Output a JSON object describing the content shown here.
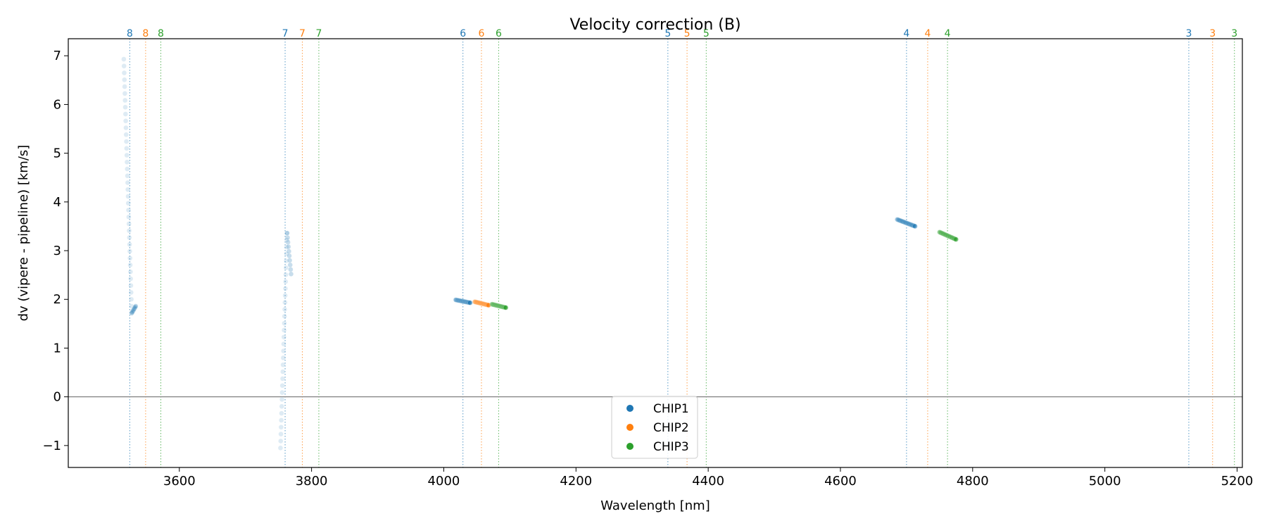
{
  "chart_data": {
    "type": "scatter",
    "title": "Velocity correction (B)",
    "xlabel": "Wavelength [nm]",
    "ylabel": "dv (vipere - pipeline) [km/s]",
    "xlim": [
      3432,
      5208
    ],
    "ylim": [
      -1.45,
      7.35
    ],
    "xticks": [
      3600,
      3800,
      4000,
      4200,
      4400,
      4600,
      4800,
      5000,
      5200
    ],
    "yticks": [
      -1,
      0,
      1,
      2,
      3,
      4,
      5,
      6,
      7
    ],
    "ytick_labels": [
      "−1",
      "0",
      "1",
      "2",
      "3",
      "4",
      "5",
      "6",
      "7"
    ],
    "hline": 0,
    "legend": {
      "position": "bottom-center",
      "entries": [
        {
          "label": "CHIP1",
          "color": "#1f77b4"
        },
        {
          "label": "CHIP2",
          "color": "#ff7f0e"
        },
        {
          "label": "CHIP3",
          "color": "#2ca02c"
        }
      ]
    },
    "order_lines": [
      {
        "order": "8",
        "chip": 1,
        "x": 3525
      },
      {
        "order": "8",
        "chip": 2,
        "x": 3549
      },
      {
        "order": "8",
        "chip": 3,
        "x": 3572
      },
      {
        "order": "7",
        "chip": 1,
        "x": 3760
      },
      {
        "order": "7",
        "chip": 2,
        "x": 3786
      },
      {
        "order": "7",
        "chip": 3,
        "x": 3811
      },
      {
        "order": "6",
        "chip": 1,
        "x": 4029
      },
      {
        "order": "6",
        "chip": 2,
        "x": 4057
      },
      {
        "order": "6",
        "chip": 3,
        "x": 4083
      },
      {
        "order": "5",
        "chip": 1,
        "x": 4339
      },
      {
        "order": "5",
        "chip": 2,
        "x": 4368
      },
      {
        "order": "5",
        "chip": 3,
        "x": 4397
      },
      {
        "order": "4",
        "chip": 1,
        "x": 4700
      },
      {
        "order": "4",
        "chip": 2,
        "x": 4732
      },
      {
        "order": "4",
        "chip": 3,
        "x": 4762
      },
      {
        "order": "3",
        "chip": 1,
        "x": 5127
      },
      {
        "order": "3",
        "chip": 2,
        "x": 5163
      },
      {
        "order": "3",
        "chip": 3,
        "x": 5196
      }
    ],
    "series": [
      {
        "name": "CHIP1",
        "color": "#1f77b4",
        "segments": [
          {
            "order": "8",
            "x_start": 3516,
            "x_end": 3528,
            "y_start": 6.93,
            "y_end": 1.72,
            "count": 38,
            "alpha": 0.15
          },
          {
            "order": "8",
            "x_start": 3528,
            "x_end": 3534,
            "y_start": 1.72,
            "y_end": 1.86,
            "count": 8,
            "alpha": 0.3
          },
          {
            "order": "7",
            "x_start": 3753,
            "x_end": 3763,
            "y_start": -1.05,
            "y_end": 3.36,
            "count": 32,
            "alpha": 0.15
          },
          {
            "order": "7",
            "x_start": 3763,
            "x_end": 3769,
            "y_start": 3.36,
            "y_end": 2.52,
            "count": 10,
            "alpha": 0.25
          },
          {
            "order": "6",
            "x_start": 4018,
            "x_end": 4040,
            "y_start": 1.99,
            "y_end": 1.93,
            "count": 30,
            "alpha": 0.4
          },
          {
            "order": "4",
            "x_start": 4686,
            "x_end": 4713,
            "y_start": 3.64,
            "y_end": 3.5,
            "count": 32,
            "alpha": 0.4
          }
        ]
      },
      {
        "name": "CHIP2",
        "color": "#ff7f0e",
        "segments": [
          {
            "order": "6",
            "x_start": 4047,
            "x_end": 4068,
            "y_start": 1.95,
            "y_end": 1.88,
            "count": 30,
            "alpha": 0.45
          }
        ]
      },
      {
        "name": "CHIP3",
        "color": "#2ca02c",
        "segments": [
          {
            "order": "6",
            "x_start": 4073,
            "x_end": 4094,
            "y_start": 1.9,
            "y_end": 1.83,
            "count": 30,
            "alpha": 0.45
          },
          {
            "order": "4",
            "x_start": 4750,
            "x_end": 4775,
            "y_start": 3.38,
            "y_end": 3.23,
            "count": 32,
            "alpha": 0.45
          }
        ]
      }
    ]
  }
}
